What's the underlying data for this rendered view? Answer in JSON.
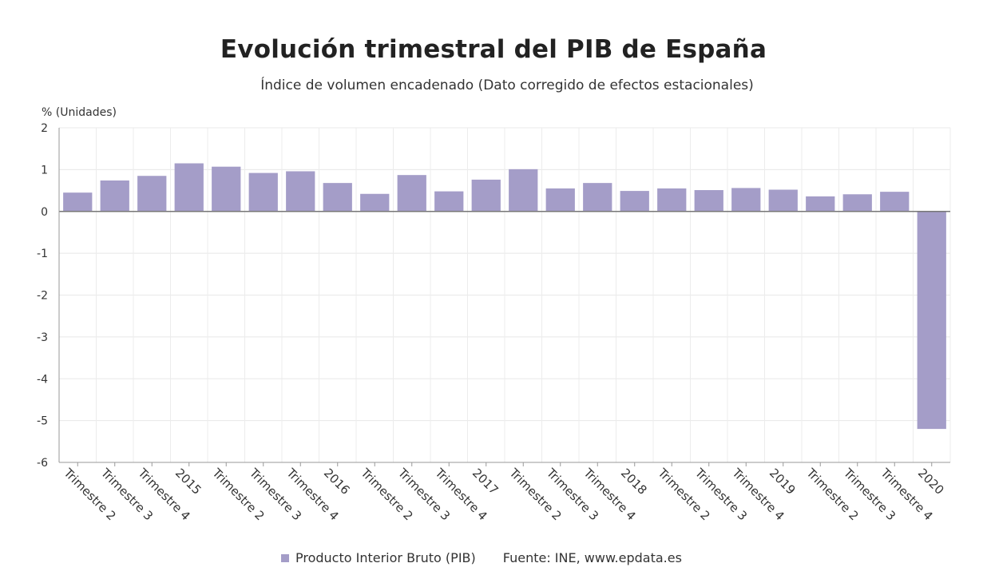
{
  "chart_data": {
    "type": "bar",
    "title": "Evolución trimestral del PIB de España",
    "subtitle": "Índice de volumen encadenado (Dato corregido de efectos estacionales)",
    "ylabel": "% (Unidades)",
    "xlabel": "",
    "ylim": [
      -6,
      2
    ],
    "yticks": [
      2,
      1,
      0,
      -1,
      -2,
      -3,
      -4,
      -5,
      -6
    ],
    "grid": true,
    "legend_position": "bottom",
    "categories": [
      "Trimestre 2",
      "Trimestre 3",
      "Trimestre 4",
      "2015",
      "Trimestre 2",
      "Trimestre 3",
      "Trimestre 4",
      "2016",
      "Trimestre 2",
      "Trimestre 3",
      "Trimestre 4",
      "2017",
      "Trimestre 2",
      "Trimestre 3",
      "Trimestre 4",
      "2018",
      "Trimestre 2",
      "Trimestre 3",
      "Trimestre 4",
      "2019",
      "Trimestre 2",
      "Trimestre 3",
      "Trimestre 4",
      "2020"
    ],
    "series": [
      {
        "name": "Producto Interior Bruto (PIB)",
        "color": "#a49dc8",
        "values": [
          0.45,
          0.74,
          0.85,
          1.15,
          1.07,
          0.92,
          0.96,
          0.68,
          0.42,
          0.87,
          0.48,
          0.76,
          1.01,
          0.55,
          0.68,
          0.49,
          0.55,
          0.51,
          0.56,
          0.52,
          0.36,
          0.41,
          0.47,
          -5.2
        ]
      }
    ],
    "source": "Fuente: INE, www.epdata.es"
  }
}
